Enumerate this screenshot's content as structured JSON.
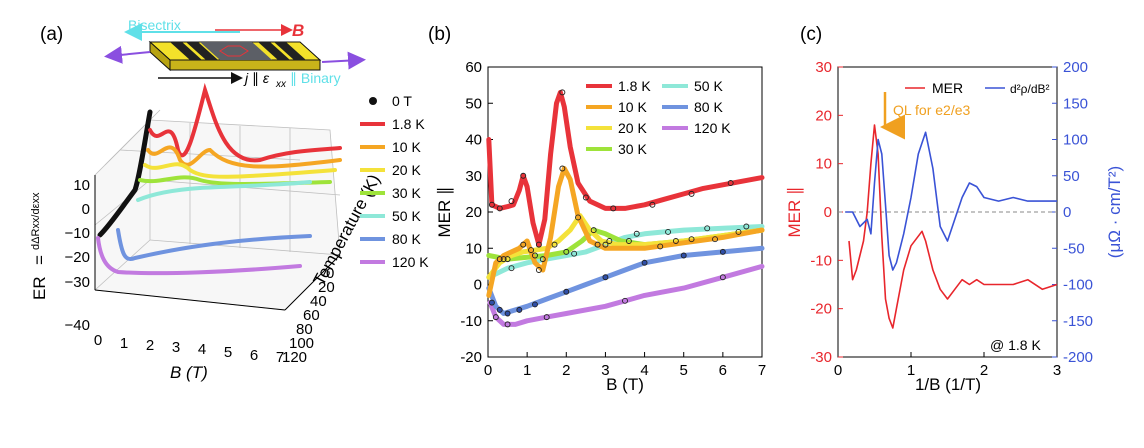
{
  "figure": {
    "panels": [
      "(a)",
      "(b)",
      "(c)"
    ]
  },
  "colors": {
    "0 T": "#111111",
    "1.8 K": "#e8333a",
    "10 K": "#f5a623",
    "20 K": "#f4e23a",
    "30 K": "#9ee33a",
    "50 K": "#8ee8d8",
    "80 K": "#6f93df",
    "120 K": "#c27ae0",
    "mer": "#e8262c",
    "d2rho": "#3a53d6",
    "arrow": "#f0a020",
    "bisectrix": "#5fe0e8",
    "axisRight": "#3a53d6"
  },
  "panel_a": {
    "schematic": {
      "bisectrix": "Bisectrix",
      "B": "B",
      "j_label": "j ∥ ε",
      "j_sub": "xx",
      "binary": "∥ Binary"
    },
    "legend": [
      "0 T",
      "1.8 K",
      "10 K",
      "20 K",
      "30 K",
      "50 K",
      "80 K",
      "120 K"
    ],
    "zlabel_main": "ER",
    "zlabel_frac": "dΔRxx/dεxx",
    "zlabel_eq": "=",
    "zticks": [
      "10",
      "0",
      "−10",
      "−20",
      "−30",
      "−40"
    ],
    "xticks": [
      "0",
      "1",
      "2",
      "3",
      "4",
      "5",
      "6",
      "7"
    ],
    "xlabel": "B (T)",
    "yticks": [
      "0",
      "20",
      "40",
      "60",
      "80",
      "100",
      "120"
    ],
    "ylabel": "Temperature (K)"
  },
  "panel_c": {
    "legend_mer": "MER",
    "legend_d2": "d²ρ/dB²",
    "annotation": "QL for e2/e3",
    "temp_note": "@ 1.8 K",
    "yright_label": "(μΩ · cm/T²)"
  },
  "chart_data": [
    {
      "id": "b",
      "type": "line",
      "title": "(b)",
      "xlabel": "B (T)",
      "ylabel": "MER ∥",
      "xlim": [
        0,
        7
      ],
      "ylim": [
        -20,
        60
      ],
      "xticks": [
        0,
        1,
        2,
        3,
        4,
        5,
        6,
        7
      ],
      "yticks": [
        -20,
        -10,
        0,
        10,
        20,
        30,
        40,
        50,
        60
      ],
      "legend": [
        "1.8 K",
        "10 K",
        "20 K",
        "30 K",
        "50 K",
        "80 K",
        "120 K"
      ],
      "series": [
        {
          "name": "1.8 K",
          "x": [
            0.02,
            0.1,
            0.3,
            0.5,
            0.65,
            0.8,
            0.9,
            1.0,
            1.15,
            1.3,
            1.45,
            1.6,
            1.75,
            1.85,
            1.95,
            2.1,
            2.3,
            2.6,
            3.0,
            3.5,
            4.0,
            4.5,
            5.0,
            5.5,
            6.0,
            6.5,
            7.0
          ],
          "y": [
            40,
            22,
            21,
            21.5,
            22,
            26,
            30,
            27,
            17,
            11,
            18,
            36,
            50,
            53,
            49,
            38,
            28,
            23,
            21,
            21,
            22,
            23.5,
            25,
            26.5,
            27.5,
            28.5,
            29.5
          ]
        },
        {
          "name": "10 K",
          "x": [
            0.02,
            0.2,
            0.4,
            0.6,
            0.8,
            0.9,
            1.0,
            1.2,
            1.4,
            1.6,
            1.8,
            1.95,
            2.1,
            2.3,
            2.6,
            3.0,
            4,
            5,
            6,
            7
          ],
          "y": [
            -3,
            6,
            8,
            9,
            10,
            11,
            12,
            6,
            4,
            13,
            27,
            32,
            29,
            19,
            12,
            10,
            10,
            11.5,
            13,
            15
          ]
        },
        {
          "name": "20 K",
          "x": [
            0.02,
            0.3,
            0.6,
            0.9,
            1.2,
            1.5,
            1.8,
            2.1,
            2.35,
            2.6,
            2.9,
            3.3,
            4,
            5,
            6,
            7
          ],
          "y": [
            2,
            6,
            8,
            9,
            9.5,
            10,
            12,
            15,
            19,
            15,
            12,
            11,
            11,
            12,
            13.5,
            15
          ]
        },
        {
          "name": "30 K",
          "x": [
            0.02,
            0.5,
            1.0,
            1.5,
            2.0,
            2.4,
            2.7,
            3.0,
            3.4,
            4,
            5,
            6,
            7
          ],
          "y": [
            8,
            7,
            7.5,
            8,
            9,
            12,
            15,
            14,
            12,
            11,
            12,
            13.5,
            15
          ]
        },
        {
          "name": "50 K",
          "x": [
            0.02,
            0.5,
            1.0,
            1.5,
            2.0,
            2.5,
            3.0,
            3.5,
            4.0,
            4.5,
            5,
            6,
            7
          ],
          "y": [
            2,
            4.5,
            6,
            7,
            8,
            9,
            11,
            13,
            14,
            14.5,
            15,
            15.5,
            16
          ]
        },
        {
          "name": "80 K",
          "x": [
            0.02,
            0.2,
            0.4,
            0.7,
            1.0,
            1.5,
            2.0,
            2.5,
            3.0,
            3.5,
            4,
            5,
            6,
            7
          ],
          "y": [
            -1,
            -6,
            -8,
            -7,
            -6,
            -4,
            -2,
            0,
            2,
            4,
            6,
            8,
            9,
            10
          ]
        },
        {
          "name": "120 K",
          "x": [
            0.05,
            0.2,
            0.4,
            0.7,
            1.0,
            1.5,
            2,
            3,
            4,
            5,
            6,
            7
          ],
          "y": [
            -5,
            -9,
            -11,
            -11,
            -10,
            -9,
            -8,
            -6,
            -3,
            -1,
            2,
            5
          ]
        }
      ],
      "markers": [
        {
          "name": "1.8 K",
          "x": [
            0.1,
            0.3,
            0.6,
            0.9,
            1.3,
            1.9,
            2.5,
            3.2,
            4.2,
            5.2,
            6.2
          ],
          "y": [
            22,
            21,
            23,
            30,
            11,
            53,
            24,
            21,
            22,
            25,
            28
          ]
        },
        {
          "name": "10 K",
          "x": [
            0.3,
            0.9,
            1.3,
            1.9,
            2.8,
            4.4,
            5.8
          ],
          "y": [
            7,
            11,
            4,
            32,
            11,
            10.5,
            12.5
          ]
        },
        {
          "name": "20 K",
          "x": [
            0.4,
            1.1,
            1.7,
            2.3,
            3.1,
            4.8,
            6.4
          ],
          "y": [
            7,
            9.5,
            11,
            18.5,
            12,
            12,
            14.5
          ]
        },
        {
          "name": "30 K",
          "x": [
            0.5,
            1.2,
            2.0,
            2.7,
            3.6,
            5.2
          ],
          "y": [
            7,
            8,
            9,
            15,
            12,
            12.5
          ]
        },
        {
          "name": "50 K",
          "x": [
            0.6,
            1.4,
            2.2,
            3.0,
            3.8,
            4.6,
            5.6,
            6.6
          ],
          "y": [
            4.5,
            7,
            8.5,
            11,
            14,
            14.5,
            15.5,
            16
          ]
        },
        {
          "name": "80 K",
          "x": [
            0.1,
            0.3,
            0.5,
            0.8,
            1.2,
            2.0,
            3.0,
            4.0,
            5.0,
            6.0
          ],
          "y": [
            -5,
            -7,
            -8,
            -7,
            -5.5,
            -2,
            2,
            6,
            8,
            9
          ]
        },
        {
          "name": "120 K",
          "x": [
            0.2,
            0.5,
            1.5,
            3.5,
            6.0
          ],
          "y": [
            -9,
            -11,
            -9,
            -4.5,
            2
          ]
        }
      ]
    },
    {
      "id": "c",
      "type": "line",
      "title": "(c)",
      "xlabel": "1/B (1/T)",
      "ylabel_left": "MER ∥",
      "ylabel_right": "d²ρ/dB² (μΩ · cm/T²)",
      "xlim": [
        0,
        3
      ],
      "ylim_left": [
        -30,
        30
      ],
      "ylim_right": [
        -200,
        200
      ],
      "xticks": [
        0,
        1,
        2,
        3
      ],
      "yticks_left": [
        -30,
        -20,
        -10,
        0,
        10,
        20,
        30
      ],
      "yticks_right": [
        -200,
        -150,
        -100,
        -50,
        0,
        50,
        100,
        150,
        200
      ],
      "series": [
        {
          "name": "MER∥",
          "axis": "left",
          "x": [
            0.15,
            0.2,
            0.25,
            0.3,
            0.35,
            0.4,
            0.45,
            0.5,
            0.55,
            0.6,
            0.65,
            0.7,
            0.75,
            0.8,
            0.9,
            1.0,
            1.1,
            1.15,
            1.2,
            1.3,
            1.4,
            1.5,
            1.6,
            1.7,
            1.8,
            1.9,
            2.0,
            2.2,
            2.4,
            2.6,
            2.8,
            3.0
          ],
          "y": [
            -6,
            -14,
            -12,
            -9,
            -6,
            0,
            10,
            18,
            12,
            -5,
            -18,
            -22,
            -24,
            -20,
            -12,
            -7,
            -5,
            -4,
            -6,
            -12,
            -16,
            -18,
            -16,
            -14,
            -15,
            -14,
            -15,
            -15,
            -15,
            -14,
            -16,
            -15
          ]
        },
        {
          "name": "d²ρ/dB²",
          "axis": "right",
          "x": [
            0.1,
            0.2,
            0.3,
            0.4,
            0.45,
            0.5,
            0.55,
            0.6,
            0.65,
            0.7,
            0.75,
            0.8,
            0.9,
            1.0,
            1.1,
            1.2,
            1.3,
            1.4,
            1.5,
            1.6,
            1.7,
            1.8,
            1.9,
            2.0,
            2.2,
            2.4,
            2.6,
            2.8,
            3.0
          ],
          "y": [
            0,
            0,
            -20,
            -10,
            -30,
            40,
            100,
            80,
            10,
            -60,
            -80,
            -70,
            -30,
            20,
            80,
            110,
            60,
            -20,
            -40,
            -10,
            20,
            40,
            35,
            20,
            15,
            20,
            15,
            15,
            15
          ]
        }
      ],
      "reference_line": {
        "axis": "left",
        "y": 0,
        "style": "dashed"
      }
    }
  ]
}
